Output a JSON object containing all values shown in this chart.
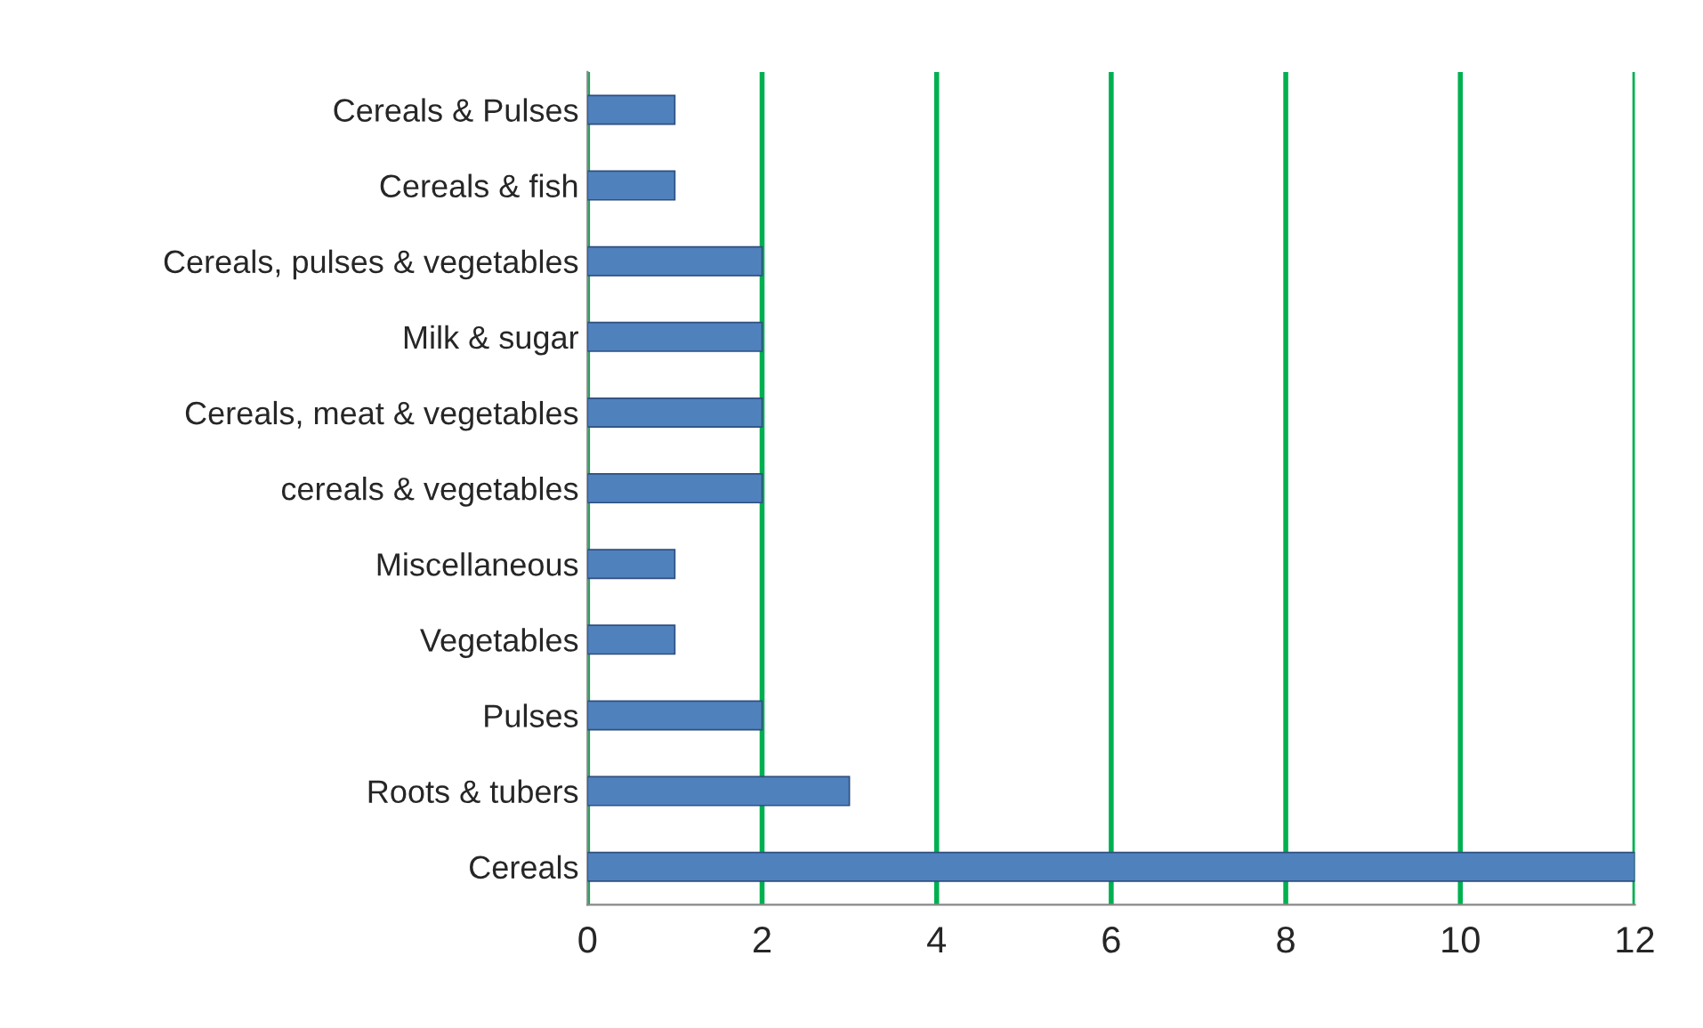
{
  "chart_data": {
    "type": "bar",
    "orientation": "horizontal",
    "categories": [
      "Cereals & Pulses",
      "Cereals & fish",
      "Cereals, pulses & vegetables",
      "Milk & sugar",
      "Cereals, meat & vegetables",
      "cereals & vegetables",
      "Miscellaneous",
      "Vegetables",
      "Pulses",
      "Roots & tubers",
      "Cereals"
    ],
    "values": [
      1,
      1,
      2,
      2,
      2,
      2,
      1,
      1,
      2,
      3,
      12
    ],
    "color": "#4f81bd",
    "xlim": [
      0,
      12
    ],
    "xticks": [
      0,
      2,
      4,
      6,
      8,
      10,
      12
    ],
    "grid": "x"
  }
}
